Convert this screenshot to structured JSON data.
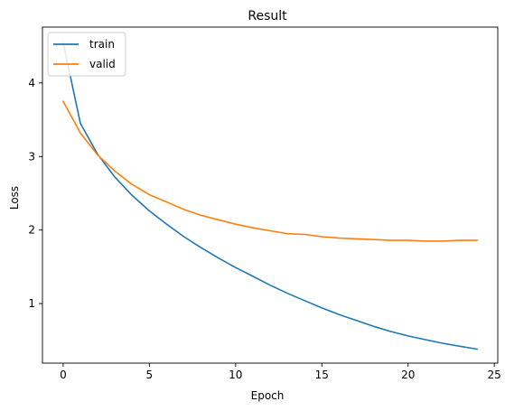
{
  "chart_data": {
    "type": "line",
    "title": "Result",
    "xlabel": "Epoch",
    "ylabel": "Loss",
    "xlim": [
      -1.2,
      25.2
    ],
    "ylim": [
      0.19,
      4.76
    ],
    "xticks": [
      0,
      5,
      10,
      15,
      20,
      25
    ],
    "yticks": [
      1,
      2,
      3,
      4
    ],
    "grid": false,
    "legend_position": "top-left",
    "x": [
      0,
      1,
      2,
      3,
      4,
      5,
      6,
      7,
      8,
      9,
      10,
      11,
      12,
      13,
      14,
      15,
      16,
      17,
      18,
      19,
      20,
      21,
      22,
      23,
      24
    ],
    "series": [
      {
        "name": "train",
        "color": "#1f77b4",
        "values": [
          4.55,
          3.45,
          3.03,
          2.72,
          2.47,
          2.26,
          2.08,
          1.91,
          1.76,
          1.62,
          1.49,
          1.37,
          1.25,
          1.14,
          1.04,
          0.94,
          0.85,
          0.77,
          0.69,
          0.62,
          0.56,
          0.51,
          0.46,
          0.42,
          0.38
        ]
      },
      {
        "name": "valid",
        "color": "#ff7f0e",
        "values": [
          3.75,
          3.32,
          3.02,
          2.8,
          2.62,
          2.48,
          2.38,
          2.28,
          2.2,
          2.14,
          2.08,
          2.03,
          1.99,
          1.95,
          1.94,
          1.91,
          1.89,
          1.88,
          1.87,
          1.86,
          1.86,
          1.85,
          1.85,
          1.86,
          1.86
        ]
      }
    ]
  }
}
